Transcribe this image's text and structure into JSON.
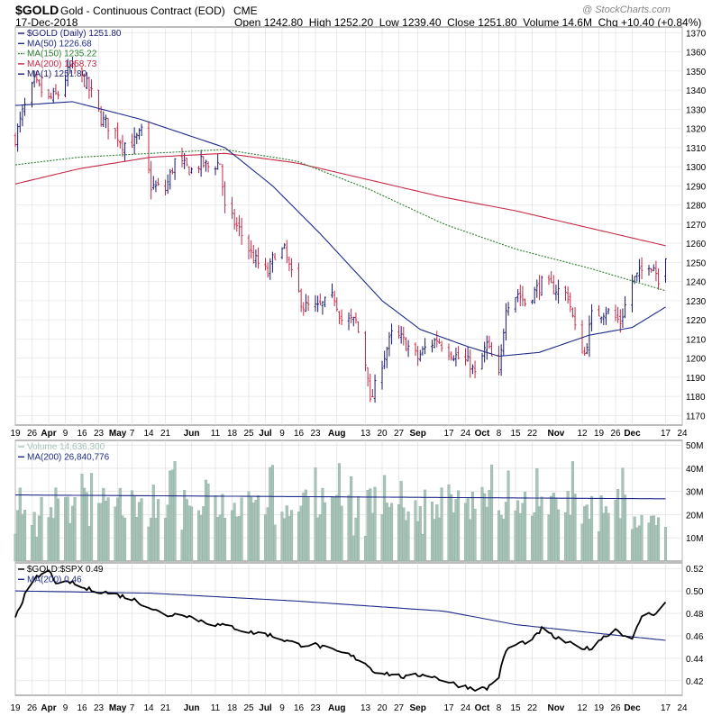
{
  "header": {
    "symbol": "$GOLD",
    "description": "Gold - Continuous Contract (EOD)",
    "exchange": "CME",
    "date": "17-Dec-2018",
    "quote": "Open 1242.80  High 1252.20  Low 1239.40  Close 1251.80  Volume 14.6M  Chg +10.40 (+0.84%)",
    "watermark": "@ StockCharts.com"
  },
  "colors": {
    "price_candle": "#1a1a6e",
    "ma50": "#1e2a8a",
    "ma150": "#2e7d32",
    "ma200": "#c62846",
    "volume_bar": "#a8c4b8",
    "volume_ma": "#1e2a8a",
    "ratio_line": "#000000",
    "ratio_ma": "#1e2a8a",
    "grid": "#dcdcdc"
  },
  "chart_data": [
    {
      "type": "line",
      "panel": "price",
      "legend": [
        {
          "label": "$GOLD (Daily) 1251.80"
        },
        {
          "label": "MA(50) 1226.68"
        },
        {
          "label": "MA(150) 1235.22"
        },
        {
          "label": "MA(200) 1258.73"
        },
        {
          "label": "MA(1) 1251.80"
        }
      ],
      "ylim": [
        1165,
        1373
      ],
      "yticks": [
        1170,
        1180,
        1190,
        1200,
        1210,
        1220,
        1230,
        1240,
        1250,
        1260,
        1270,
        1280,
        1290,
        1300,
        1310,
        1320,
        1330,
        1340,
        1350,
        1360,
        1370
      ],
      "x_start_date": "2018-03-19",
      "x_end_date": "2018-12-24",
      "x_tick_labels": [
        {
          "date": "2018-03-19",
          "label": "19"
        },
        {
          "date": "2018-03-26",
          "label": "26"
        },
        {
          "date": "2018-04-02",
          "label": "Apr"
        },
        {
          "date": "2018-04-09",
          "label": "9"
        },
        {
          "date": "2018-04-16",
          "label": "16"
        },
        {
          "date": "2018-04-23",
          "label": "23"
        },
        {
          "date": "2018-05-01",
          "label": "May"
        },
        {
          "date": "2018-05-07",
          "label": "7"
        },
        {
          "date": "2018-05-14",
          "label": "14"
        },
        {
          "date": "2018-05-21",
          "label": "21"
        },
        {
          "date": "2018-06-01",
          "label": "Jun"
        },
        {
          "date": "2018-06-11",
          "label": "11"
        },
        {
          "date": "2018-06-18",
          "label": "18"
        },
        {
          "date": "2018-06-25",
          "label": "25"
        },
        {
          "date": "2018-07-02",
          "label": "Jul"
        },
        {
          "date": "2018-07-09",
          "label": "9"
        },
        {
          "date": "2018-07-16",
          "label": "16"
        },
        {
          "date": "2018-07-23",
          "label": "23"
        },
        {
          "date": "2018-08-01",
          "label": "Aug"
        },
        {
          "date": "2018-08-13",
          "label": "13"
        },
        {
          "date": "2018-08-20",
          "label": "20"
        },
        {
          "date": "2018-08-27",
          "label": "27"
        },
        {
          "date": "2018-09-04",
          "label": "Sep"
        },
        {
          "date": "2018-09-17",
          "label": "17"
        },
        {
          "date": "2018-09-24",
          "label": "24"
        },
        {
          "date": "2018-10-01",
          "label": "Oct"
        },
        {
          "date": "2018-10-08",
          "label": "8"
        },
        {
          "date": "2018-10-15",
          "label": "15"
        },
        {
          "date": "2018-10-22",
          "label": "22"
        },
        {
          "date": "2018-11-01",
          "label": "Nov"
        },
        {
          "date": "2018-11-12",
          "label": "12"
        },
        {
          "date": "2018-11-19",
          "label": "19"
        },
        {
          "date": "2018-11-26",
          "label": "26"
        },
        {
          "date": "2018-12-03",
          "label": "Dec"
        },
        {
          "date": "2018-12-17",
          "label": "17"
        },
        {
          "date": "2018-12-24",
          "label": "24"
        }
      ],
      "price_anchors": [
        [
          "2018-03-19",
          1315
        ],
        [
          "2018-03-22",
          1328
        ],
        [
          "2018-03-27",
          1344
        ],
        [
          "2018-04-02",
          1335
        ],
        [
          "2018-04-06",
          1338
        ],
        [
          "2018-04-11",
          1352
        ],
        [
          "2018-04-17",
          1345
        ],
        [
          "2018-04-20",
          1338
        ],
        [
          "2018-04-24",
          1325
        ],
        [
          "2018-04-30",
          1318
        ],
        [
          "2018-05-03",
          1312
        ],
        [
          "2018-05-08",
          1313
        ],
        [
          "2018-05-11",
          1318
        ],
        [
          "2018-05-15",
          1290
        ],
        [
          "2018-05-21",
          1288
        ],
        [
          "2018-05-25",
          1303
        ],
        [
          "2018-06-01",
          1298
        ],
        [
          "2018-06-05",
          1302
        ],
        [
          "2018-06-08",
          1300
        ],
        [
          "2018-06-13",
          1302
        ],
        [
          "2018-06-15",
          1278
        ],
        [
          "2018-06-21",
          1267
        ],
        [
          "2018-06-27",
          1252
        ],
        [
          "2018-07-03",
          1244
        ],
        [
          "2018-07-06",
          1255
        ],
        [
          "2018-07-10",
          1256
        ],
        [
          "2018-07-13",
          1243
        ],
        [
          "2018-07-18",
          1227
        ],
        [
          "2018-07-24",
          1226
        ],
        [
          "2018-07-31",
          1232
        ],
        [
          "2018-08-03",
          1220
        ],
        [
          "2018-08-09",
          1219
        ],
        [
          "2018-08-14",
          1192
        ],
        [
          "2018-08-15",
          1176
        ],
        [
          "2018-08-20",
          1198
        ],
        [
          "2018-08-24",
          1212
        ],
        [
          "2018-08-28",
          1210
        ],
        [
          "2018-09-04",
          1200
        ],
        [
          "2018-09-07",
          1205
        ],
        [
          "2018-09-12",
          1210
        ],
        [
          "2018-09-17",
          1204
        ],
        [
          "2018-09-21",
          1200
        ],
        [
          "2018-09-26",
          1197
        ],
        [
          "2018-09-28",
          1191
        ],
        [
          "2018-10-03",
          1207
        ],
        [
          "2018-10-08",
          1190
        ],
        [
          "2018-10-11",
          1228
        ],
        [
          "2018-10-16",
          1234
        ],
        [
          "2018-10-19",
          1229
        ],
        [
          "2018-10-26",
          1239
        ],
        [
          "2018-11-01",
          1236
        ],
        [
          "2018-11-06",
          1233
        ],
        [
          "2018-11-09",
          1215
        ],
        [
          "2018-11-13",
          1202
        ],
        [
          "2018-11-16",
          1222
        ],
        [
          "2018-11-22",
          1225
        ],
        [
          "2018-11-28",
          1219
        ],
        [
          "2018-12-03",
          1240
        ],
        [
          "2018-12-06",
          1244
        ],
        [
          "2018-12-10",
          1250
        ],
        [
          "2018-12-12",
          1248
        ],
        [
          "2018-12-14",
          1242
        ],
        [
          "2018-12-17",
          1251.8
        ]
      ],
      "ma50_anchors": [
        [
          "2018-03-19",
          1332
        ],
        [
          "2018-04-12",
          1334
        ],
        [
          "2018-05-10",
          1325
        ],
        [
          "2018-06-15",
          1310
        ],
        [
          "2018-07-05",
          1290
        ],
        [
          "2018-07-25",
          1265
        ],
        [
          "2018-08-20",
          1230
        ],
        [
          "2018-09-05",
          1215
        ],
        [
          "2018-09-25",
          1206
        ],
        [
          "2018-10-08",
          1201
        ],
        [
          "2018-10-25",
          1203
        ],
        [
          "2018-11-15",
          1212
        ],
        [
          "2018-12-03",
          1216
        ],
        [
          "2018-12-17",
          1226.68
        ]
      ],
      "ma150_anchors": [
        [
          "2018-03-19",
          1301
        ],
        [
          "2018-04-15",
          1305
        ],
        [
          "2018-05-15",
          1307
        ],
        [
          "2018-06-15",
          1309
        ],
        [
          "2018-07-15",
          1303
        ],
        [
          "2018-08-15",
          1288
        ],
        [
          "2018-09-15",
          1270
        ],
        [
          "2018-10-15",
          1257
        ],
        [
          "2018-11-15",
          1247
        ],
        [
          "2018-12-17",
          1235.22
        ]
      ],
      "ma200_anchors": [
        [
          "2018-03-19",
          1291
        ],
        [
          "2018-04-15",
          1299
        ],
        [
          "2018-05-15",
          1305
        ],
        [
          "2018-06-15",
          1307
        ],
        [
          "2018-07-15",
          1302
        ],
        [
          "2018-08-15",
          1293
        ],
        [
          "2018-09-15",
          1284
        ],
        [
          "2018-10-15",
          1277
        ],
        [
          "2018-11-15",
          1268
        ],
        [
          "2018-12-17",
          1258.73
        ]
      ]
    },
    {
      "type": "bar",
      "panel": "volume",
      "legend": [
        {
          "label": "Volume 14,636,300"
        },
        {
          "label": "MA(200) 26,840,776"
        }
      ],
      "ylim": [
        0,
        52
      ],
      "yticks": [
        10,
        20,
        30,
        40,
        50
      ],
      "ytick_labels": [
        "10M",
        "20M",
        "30M",
        "40M",
        "50M"
      ],
      "unit": "M",
      "ma_start": 28.5,
      "ma_end": 26.84,
      "last_volume": 14.64
    },
    {
      "type": "line",
      "panel": "ratio",
      "legend": [
        {
          "label": "$GOLD:$SPX 0.49"
        },
        {
          "label": "MA(200) 0.46"
        }
      ],
      "ylim": [
        0.407,
        0.525
      ],
      "yticks": [
        0.42,
        0.44,
        0.46,
        0.48,
        0.5,
        0.52
      ],
      "ratio_anchors": [
        [
          "2018-03-19",
          0.478
        ],
        [
          "2018-03-23",
          0.496
        ],
        [
          "2018-03-28",
          0.512
        ],
        [
          "2018-04-02",
          0.518
        ],
        [
          "2018-04-06",
          0.505
        ],
        [
          "2018-04-11",
          0.508
        ],
        [
          "2018-04-17",
          0.502
        ],
        [
          "2018-04-23",
          0.5
        ],
        [
          "2018-04-30",
          0.497
        ],
        [
          "2018-05-07",
          0.493
        ],
        [
          "2018-05-14",
          0.486
        ],
        [
          "2018-05-21",
          0.478
        ],
        [
          "2018-05-28",
          0.48
        ],
        [
          "2018-06-04",
          0.474
        ],
        [
          "2018-06-11",
          0.47
        ],
        [
          "2018-06-18",
          0.468
        ],
        [
          "2018-06-25",
          0.463
        ],
        [
          "2018-07-02",
          0.462
        ],
        [
          "2018-07-09",
          0.457
        ],
        [
          "2018-07-16",
          0.452
        ],
        [
          "2018-07-23",
          0.452
        ],
        [
          "2018-07-30",
          0.447
        ],
        [
          "2018-08-06",
          0.443
        ],
        [
          "2018-08-13",
          0.436
        ],
        [
          "2018-08-16",
          0.429
        ],
        [
          "2018-08-23",
          0.426
        ],
        [
          "2018-08-30",
          0.423
        ],
        [
          "2018-09-07",
          0.426
        ],
        [
          "2018-09-14",
          0.421
        ],
        [
          "2018-09-21",
          0.416
        ],
        [
          "2018-09-28",
          0.413
        ],
        [
          "2018-10-03",
          0.413
        ],
        [
          "2018-10-08",
          0.424
        ],
        [
          "2018-10-11",
          0.447
        ],
        [
          "2018-10-16",
          0.453
        ],
        [
          "2018-10-22",
          0.456
        ],
        [
          "2018-10-26",
          0.466
        ],
        [
          "2018-11-01",
          0.458
        ],
        [
          "2018-11-08",
          0.452
        ],
        [
          "2018-11-15",
          0.448
        ],
        [
          "2018-11-19",
          0.456
        ],
        [
          "2018-11-26",
          0.466
        ],
        [
          "2018-12-03",
          0.456
        ],
        [
          "2018-12-07",
          0.478
        ],
        [
          "2018-12-12",
          0.48
        ],
        [
          "2018-12-14",
          0.482
        ],
        [
          "2018-12-17",
          0.49
        ]
      ],
      "ma_anchors": [
        [
          "2018-03-19",
          0.5
        ],
        [
          "2018-05-15",
          0.498
        ],
        [
          "2018-07-15",
          0.491
        ],
        [
          "2018-09-15",
          0.482
        ],
        [
          "2018-10-15",
          0.47
        ],
        [
          "2018-11-15",
          0.463
        ],
        [
          "2018-12-17",
          0.456
        ]
      ]
    }
  ]
}
